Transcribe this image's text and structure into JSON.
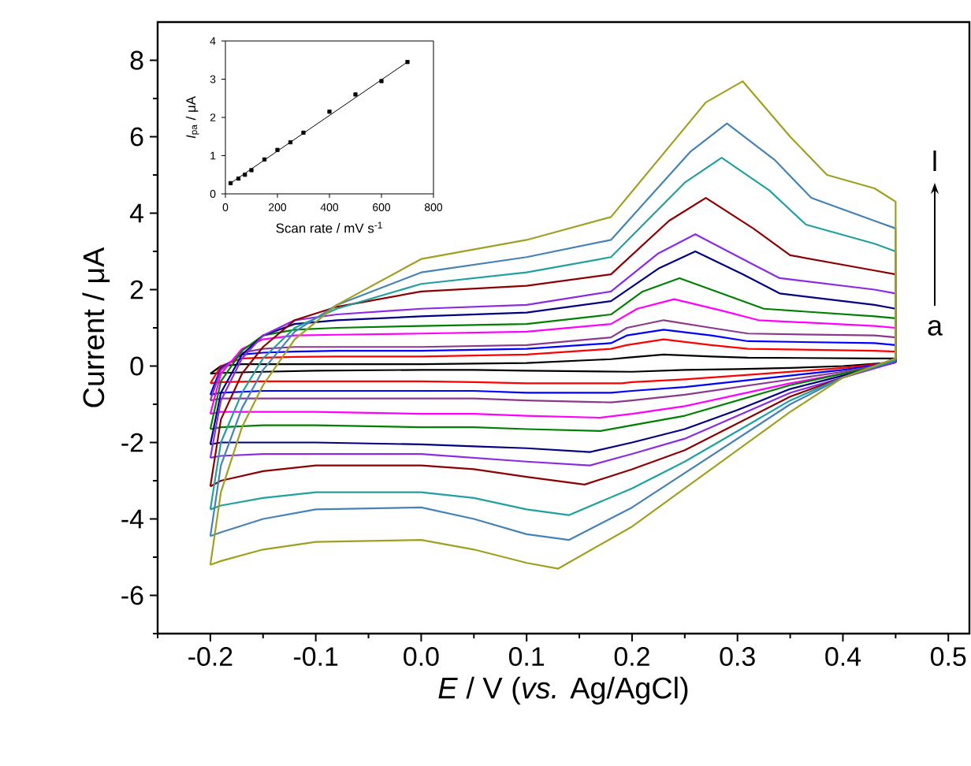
{
  "chart_data": [
    {
      "type": "line",
      "xlabel": "*E* / V (*vs.* Ag/AgCl)",
      "ylabel": "Current / μA",
      "marker": "none",
      "annotations": [
        "a",
        "l"
      ],
      "xlim": [
        -0.25,
        0.52
      ],
      "ylim": [
        -7,
        9
      ],
      "xticks": [
        {
          "value": -0.25,
          "label": null
        },
        {
          "value": -0.2,
          "label": "-0.2"
        },
        {
          "value": -0.15,
          "label": null
        },
        {
          "value": -0.1,
          "label": "-0.1"
        },
        {
          "value": -0.05,
          "label": null
        },
        {
          "value": 0,
          "label": "0.0"
        },
        {
          "value": 0.05,
          "label": null
        },
        {
          "value": 0.1,
          "label": "0.1"
        },
        {
          "value": 0.15,
          "label": null
        },
        {
          "value": 0.2,
          "label": "0.2"
        },
        {
          "value": 0.25,
          "label": null
        },
        {
          "value": 0.3,
          "label": "0.3"
        },
        {
          "value": 0.35,
          "label": null
        },
        {
          "value": 0.4,
          "label": "0.4"
        },
        {
          "value": 0.45,
          "label": null
        },
        {
          "value": 0.5,
          "label": "0.5"
        }
      ],
      "yticks": [
        {
          "value": -7,
          "label": null
        },
        -6,
        {
          "value": -5,
          "label": null
        },
        -4,
        {
          "value": -3,
          "label": null
        },
        -2,
        {
          "value": -1,
          "label": null
        },
        0,
        {
          "value": 1,
          "label": null
        },
        2,
        {
          "value": 3,
          "label": null
        },
        4,
        {
          "value": 5,
          "label": null
        },
        6,
        {
          "value": 7,
          "label": null
        },
        8
      ],
      "series": [
        {
          "color": "#000000",
          "x": [
            -0.2,
            -0.19,
            -0.17,
            -0.15,
            -0.12,
            -0.08,
            0,
            0.1,
            0.18,
            0.195,
            0.23,
            0.275,
            0.31,
            0.43,
            0.45,
            0.45
          ],
          "values": [
            -0.2,
            0.0,
            0.05,
            0.05,
            0.05,
            0.05,
            0.05,
            0.08,
            0.18,
            0.22,
            0.3,
            0.25,
            0.22,
            0.2,
            0.2,
            0.1
          ]
        },
        {
          "color": "#000000",
          "x": [
            -0.2,
            -0.19,
            -0.15,
            -0.1,
            0,
            0.05,
            0.1,
            0.2,
            0.25,
            0.3,
            0.35,
            0.4,
            0.45
          ],
          "values": [
            -0.2,
            -0.18,
            -0.15,
            -0.12,
            -0.1,
            -0.1,
            -0.12,
            -0.15,
            -0.1,
            -0.08,
            -0.05,
            0.0,
            0.1
          ]
        },
        {
          "color": "#ff0000",
          "x": [
            -0.2,
            -0.19,
            -0.17,
            -0.15,
            -0.12,
            -0.08,
            0,
            0.1,
            0.18,
            0.195,
            0.23,
            0.275,
            0.31,
            0.43,
            0.45,
            0.45
          ],
          "values": [
            -0.45,
            0.0,
            0.2,
            0.22,
            0.24,
            0.25,
            0.25,
            0.3,
            0.45,
            0.55,
            0.7,
            0.55,
            0.45,
            0.4,
            0.38,
            0.1
          ]
        },
        {
          "color": "#ff0000",
          "x": [
            -0.2,
            -0.19,
            -0.15,
            -0.1,
            0,
            0.05,
            0.1,
            0.19,
            0.2,
            0.25,
            0.3,
            0.35,
            0.4,
            0.45
          ],
          "values": [
            -0.45,
            -0.42,
            -0.4,
            -0.4,
            -0.4,
            -0.42,
            -0.45,
            -0.45,
            -0.42,
            -0.35,
            -0.25,
            -0.15,
            -0.05,
            0.1
          ]
        },
        {
          "color": "#0000ff",
          "x": [
            -0.2,
            -0.19,
            -0.17,
            -0.15,
            -0.12,
            -0.08,
            0,
            0.1,
            0.18,
            0.195,
            0.23,
            0.275,
            0.31,
            0.43,
            0.45,
            0.45
          ],
          "values": [
            -0.75,
            -0.05,
            0.3,
            0.35,
            0.38,
            0.4,
            0.4,
            0.45,
            0.6,
            0.8,
            0.95,
            0.8,
            0.65,
            0.6,
            0.55,
            0.1
          ]
        },
        {
          "color": "#0000ff",
          "x": [
            -0.2,
            -0.19,
            -0.15,
            -0.1,
            0,
            0.05,
            0.1,
            0.18,
            0.2,
            0.25,
            0.3,
            0.35,
            0.4,
            0.45
          ],
          "values": [
            -0.75,
            -0.7,
            -0.65,
            -0.65,
            -0.65,
            -0.65,
            -0.7,
            -0.7,
            -0.65,
            -0.55,
            -0.4,
            -0.25,
            -0.1,
            0.1
          ]
        },
        {
          "color": "#8b3a8b",
          "x": [
            -0.2,
            -0.19,
            -0.17,
            -0.15,
            -0.12,
            -0.08,
            0,
            0.1,
            0.18,
            0.195,
            0.23,
            0.275,
            0.31,
            0.43,
            0.45,
            0.45
          ],
          "values": [
            -0.9,
            -0.1,
            0.35,
            0.45,
            0.5,
            0.5,
            0.5,
            0.55,
            0.75,
            1.0,
            1.2,
            1.0,
            0.85,
            0.8,
            0.75,
            0.1
          ]
        },
        {
          "color": "#8b3a8b",
          "x": [
            -0.2,
            -0.19,
            -0.15,
            -0.1,
            0,
            0.05,
            0.1,
            0.18,
            0.2,
            0.25,
            0.3,
            0.35,
            0.4,
            0.45
          ],
          "values": [
            -0.9,
            -0.85,
            -0.85,
            -0.85,
            -0.85,
            -0.85,
            -0.9,
            -0.95,
            -0.9,
            -0.75,
            -0.55,
            -0.35,
            -0.15,
            0.1
          ]
        },
        {
          "color": "#ff00ff",
          "x": [
            -0.2,
            -0.19,
            -0.17,
            -0.15,
            -0.12,
            -0.08,
            0,
            0.1,
            0.18,
            0.205,
            0.24,
            0.285,
            0.32,
            0.43,
            0.45,
            0.45
          ],
          "values": [
            -1.25,
            -0.2,
            0.45,
            0.7,
            0.8,
            0.82,
            0.85,
            0.9,
            1.1,
            1.5,
            1.75,
            1.45,
            1.2,
            1.05,
            1.0,
            0.1
          ]
        },
        {
          "color": "#ff00ff",
          "x": [
            -0.2,
            -0.19,
            -0.15,
            -0.1,
            0,
            0.05,
            0.1,
            0.17,
            0.2,
            0.25,
            0.3,
            0.35,
            0.4,
            0.45
          ],
          "values": [
            -1.25,
            -1.2,
            -1.2,
            -1.2,
            -1.25,
            -1.25,
            -1.3,
            -1.35,
            -1.25,
            -1.05,
            -0.75,
            -0.45,
            -0.2,
            0.1
          ]
        },
        {
          "color": "#008000",
          "x": [
            -0.2,
            -0.19,
            -0.17,
            -0.15,
            -0.12,
            -0.08,
            0,
            0.1,
            0.18,
            0.21,
            0.245,
            0.29,
            0.325,
            0.43,
            0.45,
            0.45
          ],
          "values": [
            -1.65,
            -0.4,
            0.4,
            0.8,
            0.95,
            1.0,
            1.05,
            1.1,
            1.35,
            1.95,
            2.3,
            1.85,
            1.5,
            1.3,
            1.25,
            0.1
          ]
        },
        {
          "color": "#008000",
          "x": [
            -0.2,
            -0.19,
            -0.15,
            -0.1,
            0,
            0.05,
            0.1,
            0.17,
            0.2,
            0.25,
            0.3,
            0.35,
            0.4,
            0.45
          ],
          "values": [
            -1.65,
            -1.6,
            -1.55,
            -1.55,
            -1.6,
            -1.6,
            -1.65,
            -1.7,
            -1.55,
            -1.3,
            -0.9,
            -0.5,
            -0.2,
            0.1
          ]
        },
        {
          "color": "#000080",
          "x": [
            -0.2,
            -0.19,
            -0.17,
            -0.15,
            -0.12,
            -0.08,
            0,
            0.1,
            0.18,
            0.225,
            0.26,
            0.305,
            0.34,
            0.43,
            0.45,
            0.45
          ],
          "values": [
            -2.05,
            -0.7,
            0.3,
            0.8,
            1.1,
            1.2,
            1.3,
            1.4,
            1.7,
            2.55,
            3.0,
            2.4,
            1.9,
            1.6,
            1.5,
            0.1
          ]
        },
        {
          "color": "#000080",
          "x": [
            -0.2,
            -0.19,
            -0.15,
            -0.1,
            0,
            0.05,
            0.1,
            0.16,
            0.2,
            0.25,
            0.3,
            0.35,
            0.4,
            0.45
          ],
          "values": [
            -2.05,
            -2.0,
            -2.0,
            -2.0,
            -2.05,
            -2.1,
            -2.15,
            -2.25,
            -2.0,
            -1.65,
            -1.15,
            -0.6,
            -0.25,
            0.1
          ]
        },
        {
          "color": "#8a2be2",
          "x": [
            -0.2,
            -0.19,
            -0.17,
            -0.15,
            -0.12,
            -0.08,
            0,
            0.1,
            0.18,
            0.225,
            0.26,
            0.305,
            0.34,
            0.43,
            0.45,
            0.45
          ],
          "values": [
            -2.4,
            -0.9,
            0.2,
            0.8,
            1.2,
            1.35,
            1.5,
            1.6,
            1.95,
            2.95,
            3.45,
            2.8,
            2.3,
            2.0,
            1.9,
            0.1
          ]
        },
        {
          "color": "#8a2be2",
          "x": [
            -0.2,
            -0.19,
            -0.15,
            -0.1,
            0,
            0.05,
            0.1,
            0.16,
            0.2,
            0.25,
            0.3,
            0.35,
            0.4,
            0.45
          ],
          "values": [
            -2.4,
            -2.35,
            -2.3,
            -2.3,
            -2.3,
            -2.4,
            -2.5,
            -2.6,
            -2.3,
            -1.9,
            -1.3,
            -0.7,
            -0.3,
            0.1
          ]
        },
        {
          "color": "#8b0000",
          "x": [
            -0.2,
            -0.19,
            -0.17,
            -0.15,
            -0.12,
            -0.08,
            0,
            0.1,
            0.18,
            0.235,
            0.27,
            0.315,
            0.35,
            0.43,
            0.45,
            0.45
          ],
          "values": [
            -3.15,
            -1.4,
            -0.2,
            0.5,
            1.2,
            1.55,
            1.95,
            2.1,
            2.4,
            3.8,
            4.4,
            3.6,
            2.9,
            2.5,
            2.4,
            0.15
          ]
        },
        {
          "color": "#8b0000",
          "x": [
            -0.2,
            -0.19,
            -0.15,
            -0.1,
            0,
            0.05,
            0.1,
            0.155,
            0.2,
            0.25,
            0.3,
            0.35,
            0.4,
            0.45
          ],
          "values": [
            -3.15,
            -3.0,
            -2.75,
            -2.6,
            -2.6,
            -2.7,
            -2.9,
            -3.1,
            -2.7,
            -2.2,
            -1.5,
            -0.8,
            -0.3,
            0.15
          ]
        },
        {
          "color": "#20a0a0",
          "x": [
            -0.2,
            -0.19,
            -0.17,
            -0.15,
            -0.12,
            -0.08,
            0,
            0.1,
            0.18,
            0.25,
            0.285,
            0.33,
            0.365,
            0.43,
            0.45,
            0.45
          ],
          "values": [
            -3.75,
            -2.0,
            -0.7,
            0.2,
            1.0,
            1.5,
            2.15,
            2.45,
            2.85,
            4.8,
            5.45,
            4.6,
            3.7,
            3.2,
            3.0,
            0.15
          ]
        },
        {
          "color": "#20a0a0",
          "x": [
            -0.2,
            -0.19,
            -0.15,
            -0.1,
            0,
            0.05,
            0.1,
            0.14,
            0.2,
            0.25,
            0.3,
            0.35,
            0.4,
            0.45
          ],
          "values": [
            -3.75,
            -3.65,
            -3.45,
            -3.3,
            -3.3,
            -3.45,
            -3.75,
            -3.9,
            -3.2,
            -2.5,
            -1.7,
            -0.9,
            -0.3,
            0.15
          ]
        },
        {
          "color": "#4682b4",
          "x": [
            -0.2,
            -0.19,
            -0.17,
            -0.15,
            -0.12,
            -0.08,
            0,
            0.1,
            0.18,
            0.255,
            0.29,
            0.335,
            0.37,
            0.43,
            0.45,
            0.45
          ],
          "values": [
            -4.45,
            -2.6,
            -1.1,
            -0.1,
            0.9,
            1.6,
            2.45,
            2.85,
            3.3,
            5.6,
            6.35,
            5.4,
            4.4,
            3.8,
            3.6,
            0.2
          ]
        },
        {
          "color": "#4682b4",
          "x": [
            -0.2,
            -0.19,
            -0.15,
            -0.1,
            0,
            0.05,
            0.1,
            0.14,
            0.2,
            0.25,
            0.3,
            0.35,
            0.4,
            0.45
          ],
          "values": [
            -4.45,
            -4.35,
            -4.0,
            -3.75,
            -3.7,
            -4.0,
            -4.4,
            -4.55,
            -3.7,
            -2.8,
            -1.9,
            -1.0,
            -0.3,
            0.2
          ]
        },
        {
          "color": "#a0a020",
          "x": [
            -0.2,
            -0.19,
            -0.17,
            -0.15,
            -0.12,
            -0.08,
            0,
            0.1,
            0.18,
            0.27,
            0.305,
            0.35,
            0.385,
            0.43,
            0.45,
            0.45
          ],
          "values": [
            -5.2,
            -3.3,
            -1.6,
            -0.5,
            0.7,
            1.6,
            2.8,
            3.3,
            3.9,
            6.9,
            7.45,
            6.0,
            5.0,
            4.65,
            4.3,
            0.2
          ]
        },
        {
          "color": "#a0a020",
          "x": [
            -0.2,
            -0.19,
            -0.15,
            -0.1,
            0,
            0.05,
            0.1,
            0.13,
            0.2,
            0.25,
            0.3,
            0.35,
            0.4,
            0.45
          ],
          "values": [
            -5.2,
            -5.1,
            -4.8,
            -4.6,
            -4.55,
            -4.8,
            -5.15,
            -5.3,
            -4.2,
            -3.2,
            -2.2,
            -1.2,
            -0.3,
            0.2
          ]
        }
      ]
    },
    {
      "type": "scatter",
      "xlabel": "Scan rate / mV s$^{-1}$",
      "ylabel": "*I*$_{pa}$ / μA",
      "xlim": [
        0,
        800
      ],
      "ylim": [
        0,
        4
      ],
      "xticks": [
        0,
        200,
        400,
        600,
        800
      ],
      "yticks": [
        0,
        1,
        2,
        3,
        4
      ],
      "series": [
        {
          "color": "#000000",
          "marker": "square",
          "x": [
            20,
            50,
            75,
            100,
            150,
            200,
            250,
            300,
            400,
            500,
            600,
            700
          ],
          "values": [
            0.28,
            0.4,
            0.5,
            0.62,
            0.9,
            1.15,
            1.35,
            1.6,
            2.15,
            2.6,
            2.95,
            3.45
          ]
        },
        {
          "type": "line",
          "marker": "none",
          "color": "#000000",
          "x": [
            20,
            700
          ],
          "values": [
            0.28,
            3.45
          ]
        }
      ]
    }
  ]
}
